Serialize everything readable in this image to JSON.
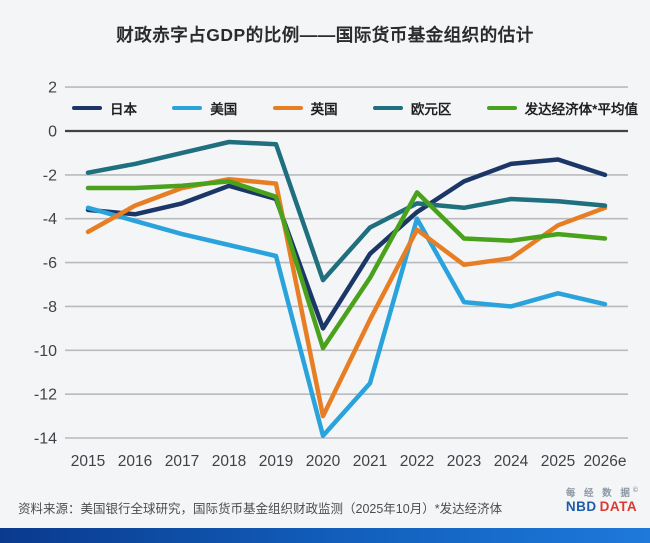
{
  "title": "财政赤字占GDP的比例——国际货币基金组织的估计",
  "chart_data": {
    "type": "line",
    "x": [
      "2015",
      "2016",
      "2017",
      "2018",
      "2019",
      "2020",
      "2021",
      "2022",
      "2023",
      "2024",
      "2025",
      "2026e"
    ],
    "ylim": [
      -14,
      2
    ],
    "yticks": [
      2,
      0,
      -2,
      -4,
      -6,
      -8,
      -10,
      -12,
      -14
    ],
    "grid": true,
    "legend_position": "top",
    "series": [
      {
        "key": "japan",
        "name": "日本",
        "color": "#1c3667",
        "values": [
          -3.6,
          -3.8,
          -3.3,
          -2.5,
          -3.1,
          -9.0,
          -5.6,
          -3.7,
          -2.3,
          -1.5,
          -1.3,
          -2.0
        ]
      },
      {
        "key": "us",
        "name": "美国",
        "color": "#2aa3dd",
        "values": [
          -3.5,
          -4.1,
          -4.7,
          -5.2,
          -5.7,
          -13.9,
          -11.5,
          -4.0,
          -7.8,
          -8.0,
          -7.4,
          -7.9
        ]
      },
      {
        "key": "uk",
        "name": "英国",
        "color": "#e87e23",
        "values": [
          -4.6,
          -3.4,
          -2.6,
          -2.2,
          -2.4,
          -13.0,
          -8.6,
          -4.5,
          -6.1,
          -5.8,
          -4.3,
          -3.5
        ]
      },
      {
        "key": "eurozone",
        "name": "欧元区",
        "color": "#1f6f7e",
        "values": [
          -1.9,
          -1.5,
          -1.0,
          -0.5,
          -0.6,
          -6.8,
          -4.4,
          -3.3,
          -3.5,
          -3.1,
          -3.2,
          -3.4
        ]
      },
      {
        "key": "advanced",
        "name": "发达经济体*平均值",
        "color": "#4aa21c",
        "values": [
          -2.6,
          -2.6,
          -2.5,
          -2.3,
          -3.0,
          -9.9,
          -6.7,
          -2.8,
          -4.9,
          -5.0,
          -4.7,
          -4.9
        ]
      }
    ]
  },
  "footer": {
    "source": "资料来源：美国银行全球研究，国际货币基金组织财政监测（2025年10月）*发达经济体"
  },
  "logo": {
    "cn": "每 经 数 据",
    "copyright": "©",
    "nbd": "NBD",
    "data": "DATA"
  },
  "style_colors": {
    "background": "#f4f5f7",
    "gridline": "#b8babd",
    "zero_line": "#434343",
    "axis_text": "#3f4347",
    "bottom_bar_start": "#0a3a8e",
    "bottom_bar_end": "#1e79da"
  }
}
